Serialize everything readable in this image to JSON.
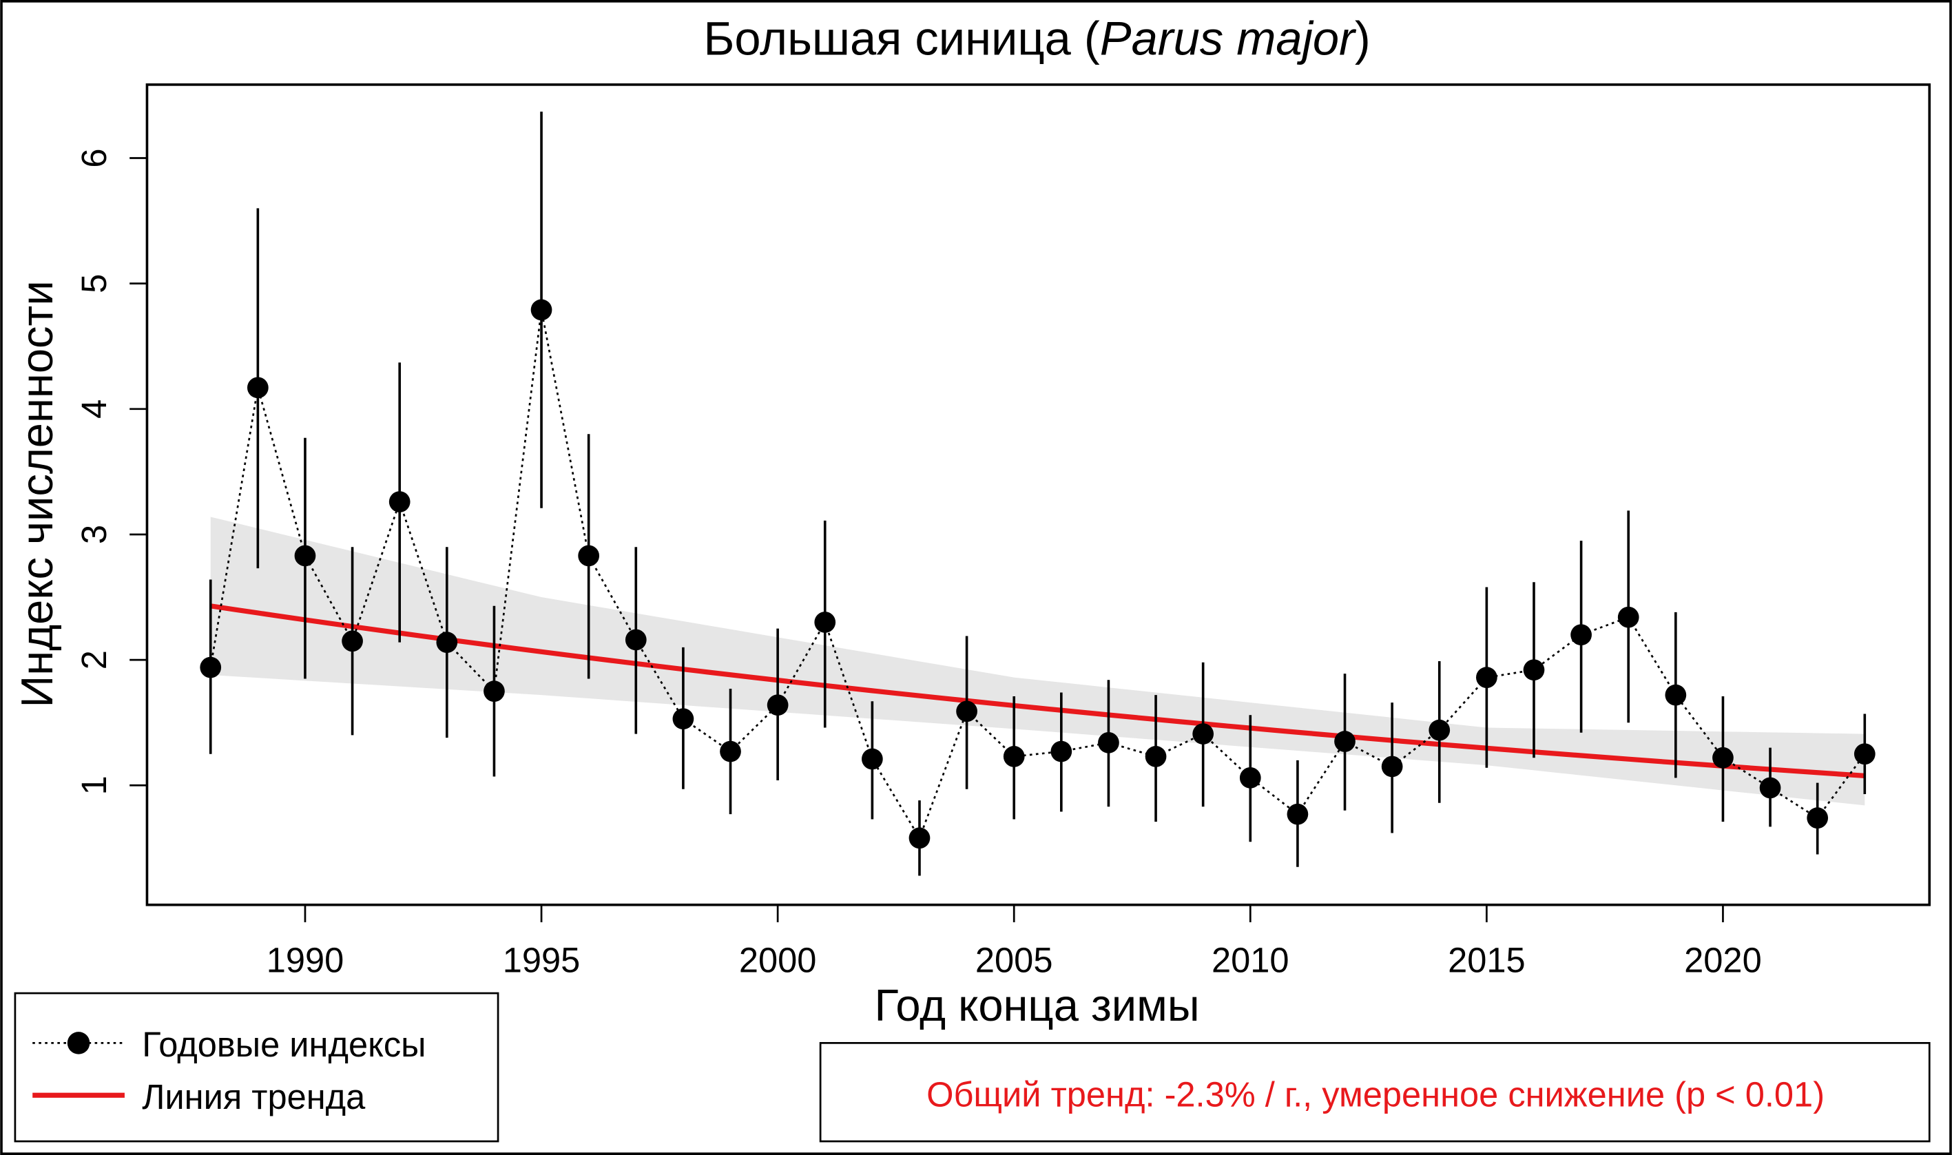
{
  "chart_data": {
    "type": "line",
    "title_main": "Большая синица (",
    "title_italic": "Parus major",
    "title_end": ")",
    "xlabel": "Год конца зимы",
    "ylabel": "Индекс численности",
    "xlim": [
      1986.7,
      2024.4
    ],
    "ylim": [
      0,
      6.6
    ],
    "x_ticks": [
      1990,
      1995,
      2000,
      2005,
      2010,
      2015,
      2020
    ],
    "x_tick_labels": [
      "1990",
      "1995",
      "2000",
      "2005",
      "2010",
      "2015",
      "2020"
    ],
    "y_ticks": [
      1,
      2,
      3,
      4,
      5,
      6
    ],
    "y_tick_labels": [
      "1",
      "2",
      "3",
      "4",
      "5",
      "6"
    ],
    "years": [
      1988,
      1989,
      1990,
      1991,
      1992,
      1993,
      1994,
      1995,
      1996,
      1997,
      1998,
      1999,
      2000,
      2001,
      2002,
      2003,
      2004,
      2005,
      2006,
      2007,
      2008,
      2009,
      2010,
      2011,
      2012,
      2013,
      2014,
      2015,
      2016,
      2017,
      2018,
      2019,
      2020,
      2021,
      2022,
      2023
    ],
    "index": [
      1.94,
      4.17,
      2.83,
      2.15,
      3.26,
      2.14,
      1.75,
      4.79,
      2.83,
      2.16,
      1.53,
      1.27,
      1.64,
      2.3,
      1.21,
      0.58,
      1.59,
      1.23,
      1.27,
      1.34,
      1.23,
      1.41,
      1.06,
      0.77,
      1.35,
      1.15,
      1.44,
      1.86,
      1.92,
      2.2,
      2.34,
      1.72,
      1.22,
      0.98,
      0.74,
      1.25
    ],
    "upper": [
      2.64,
      5.6,
      3.77,
      2.9,
      4.37,
      2.9,
      2.43,
      6.37,
      3.8,
      2.9,
      2.1,
      1.77,
      2.25,
      3.11,
      1.67,
      0.88,
      2.19,
      1.71,
      1.74,
      1.84,
      1.72,
      1.98,
      1.56,
      1.2,
      1.89,
      1.66,
      1.99,
      2.58,
      2.62,
      2.95,
      3.19,
      2.38,
      1.71,
      1.3,
      1.02,
      1.57
    ],
    "lower": [
      1.25,
      2.73,
      1.85,
      1.4,
      2.14,
      1.38,
      1.07,
      3.21,
      1.85,
      1.41,
      0.97,
      0.77,
      1.04,
      1.46,
      0.73,
      0.28,
      0.97,
      0.73,
      0.79,
      0.83,
      0.71,
      0.83,
      0.55,
      0.35,
      0.8,
      0.62,
      0.86,
      1.14,
      1.22,
      1.42,
      1.5,
      1.06,
      0.71,
      0.67,
      0.45,
      0.93
    ],
    "trend": {
      "start_year": 1988,
      "start_value": 2.43,
      "annual_rate": -0.023
    },
    "trend_ci": {
      "years": [
        1988,
        1995,
        2005,
        2015,
        2023
      ],
      "upper": [
        3.14,
        2.5,
        1.86,
        1.46,
        1.41
      ],
      "lower": [
        1.88,
        1.72,
        1.45,
        1.16,
        0.84
      ]
    },
    "colors": {
      "trend": "#e8191c",
      "band": "#e6e6e6",
      "points": "#000000"
    },
    "legend": {
      "placement": "bottom-left",
      "items": [
        "Годовые индексы",
        "Линия тренда"
      ]
    },
    "annotation": "Общий тренд: -2.3% / г., умеренное снижение (p < 0.01)"
  }
}
